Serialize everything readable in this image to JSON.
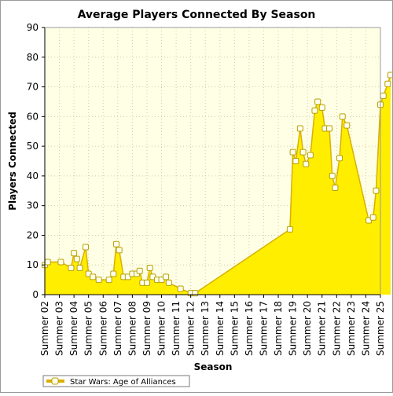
{
  "chart_data": {
    "type": "area",
    "title": "Average Players Connected By Season",
    "xlabel": "Season",
    "ylabel": "Players Connected",
    "ylim": [
      0,
      90
    ],
    "yticks": [
      0,
      10,
      20,
      30,
      40,
      50,
      60,
      70,
      80,
      90
    ],
    "grid": true,
    "legend_position": "bottom-left",
    "colors": {
      "fill": "#ffee00",
      "line": "#d8b000",
      "marker_fill": "#ffffee",
      "plot_bg": "#ffffe6",
      "grid": "#cfcfa0"
    },
    "categories": [
      "Summer 02",
      "Summer 03",
      "Summer 04",
      "Summer 05",
      "Summer 06",
      "Summer 07",
      "Summer 08",
      "Summer 09",
      "Summer 10",
      "Summer 11",
      "Summer 12",
      "Summer 13",
      "Summer 14",
      "Summer 15",
      "Summer 16",
      "Summer 17",
      "Summer 18",
      "Summer 19",
      "Summer 20",
      "Summer 21",
      "Summer 22",
      "Summer 23",
      "Summer 24",
      "Summer 25"
    ],
    "series": [
      {
        "name": "Star Wars: Age of Alliances",
        "points": [
          [
            0.0,
            10
          ],
          [
            0.2,
            11
          ],
          [
            1.1,
            11
          ],
          [
            1.8,
            9
          ],
          [
            2.0,
            14
          ],
          [
            2.2,
            12
          ],
          [
            2.4,
            9
          ],
          [
            2.8,
            16
          ],
          [
            3.0,
            7
          ],
          [
            3.3,
            6
          ],
          [
            3.7,
            5
          ],
          [
            4.4,
            5
          ],
          [
            4.7,
            7
          ],
          [
            4.9,
            17
          ],
          [
            5.1,
            15
          ],
          [
            5.4,
            6
          ],
          [
            5.7,
            6
          ],
          [
            6.0,
            7
          ],
          [
            6.3,
            7
          ],
          [
            6.5,
            8
          ],
          [
            6.7,
            4
          ],
          [
            7.0,
            4
          ],
          [
            7.2,
            9
          ],
          [
            7.4,
            6
          ],
          [
            7.7,
            5
          ],
          [
            8.0,
            5
          ],
          [
            8.3,
            6
          ],
          [
            8.5,
            4
          ],
          [
            9.3,
            2
          ],
          [
            10.0,
            0.5
          ],
          [
            10.3,
            0.5
          ],
          [
            16.8,
            22
          ],
          [
            17.0,
            48
          ],
          [
            17.2,
            45
          ],
          [
            17.5,
            56
          ],
          [
            17.7,
            48
          ],
          [
            17.9,
            44
          ],
          [
            18.2,
            47
          ],
          [
            18.5,
            62
          ],
          [
            18.7,
            65
          ],
          [
            19.0,
            63
          ],
          [
            19.2,
            56
          ],
          [
            19.5,
            56
          ],
          [
            19.7,
            40
          ],
          [
            19.9,
            36
          ],
          [
            20.2,
            46
          ],
          [
            20.4,
            60
          ],
          [
            20.7,
            57
          ],
          [
            22.2,
            25
          ],
          [
            22.5,
            26
          ],
          [
            22.7,
            35
          ],
          [
            23.0,
            64
          ],
          [
            23.2,
            67
          ],
          [
            23.5,
            71
          ],
          [
            23.7,
            74
          ]
        ]
      }
    ]
  }
}
